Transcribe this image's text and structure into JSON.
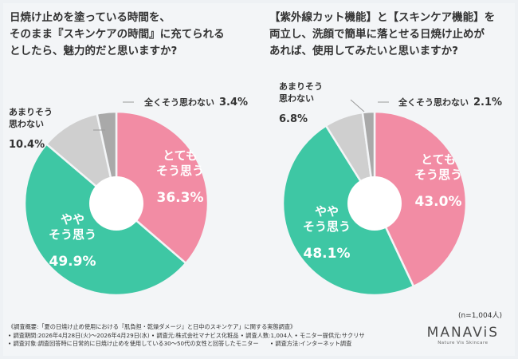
{
  "questions": {
    "left": {
      "l1": "日焼け止めを塗っている時間を、",
      "l2": "そのまま『スキンケアの時間』に充てられる",
      "l3": "としたら、魅力的だと思いますか?"
    },
    "right": {
      "l1": "【紫外線カット機能】と【スキンケア機能】を",
      "l2": "両立し、洗顔で簡単に落とせる日焼け止めが",
      "l3": "あれば、使用してみたいと思いますか?"
    }
  },
  "colors": {
    "pink": "#f28ca4",
    "green": "#3ec7a4",
    "gray": "#cfcfcf",
    "dark_gray": "#a9a9a9"
  },
  "chart_data": [
    {
      "type": "pie",
      "categories": [
        "とてもそう思う",
        "ややそう思う",
        "あまりそう思わない",
        "全くそう思わない"
      ],
      "values": [
        36.3,
        49.9,
        10.4,
        3.4
      ],
      "labels": [
        {
          "l1": "とても",
          "l2": "そう思う",
          "pct": "36.3%"
        },
        {
          "l1": "やや",
          "l2": "そう思う",
          "pct": "49.9%"
        },
        {
          "l1": "あまりそう",
          "l2": "思わない",
          "pct": "10.4%"
        },
        {
          "l1": "全くそう思わない",
          "l2": "",
          "pct": "3.4%"
        }
      ]
    },
    {
      "type": "pie",
      "categories": [
        "とてもそう思う",
        "ややそう思う",
        "あまりそう思わない",
        "全くそう思わない"
      ],
      "values": [
        43.0,
        48.1,
        6.8,
        2.1
      ],
      "labels": [
        {
          "l1": "とても",
          "l2": "そう思う",
          "pct": "43.0%"
        },
        {
          "l1": "やや",
          "l2": "そう思う",
          "pct": "48.1%"
        },
        {
          "l1": "あまりそう",
          "l2": "思わない",
          "pct": "6.8%"
        },
        {
          "l1": "全くそう思わない",
          "l2": "",
          "pct": "2.1%"
        }
      ]
    }
  ],
  "sample_size": "(n=1,004人)",
  "notes": [
    "《調査概要:「夏の日焼け止め使用における『肌負担・乾燥ダメージ』と日中のスキンケア」に関する実態調査》",
    "• 調査期間:2026年4月28日(火)〜2026年4月29日(水) • 調査元:株式会社マナビス化粧品 • 調査人数:1,004人 • モニター提供元:サクリサ",
    "• 調査対象:調査回答時に日常的に日焼け止めを使用している30〜50代の女性と回答したモニター　　• 調査方法:インターネット調査"
  ],
  "logo": {
    "brand": "MANAViS",
    "tagline": "Nature Vis Skincare"
  }
}
